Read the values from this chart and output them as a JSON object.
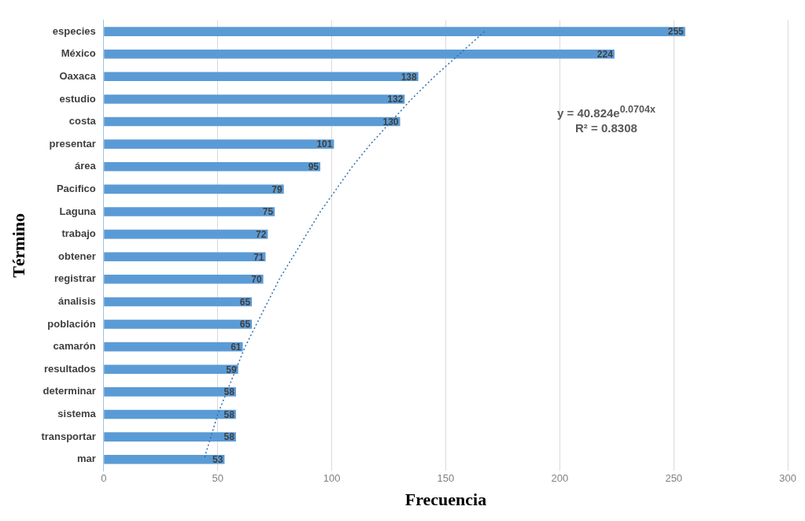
{
  "chart_data": {
    "type": "bar",
    "orientation": "horizontal",
    "xlabel": "Frecuencia",
    "ylabel": "Término",
    "categories": [
      "especies",
      "México",
      "Oaxaca",
      "estudio",
      "costa",
      "presentar",
      "área",
      "Pacifico",
      "Laguna",
      "trabajo",
      "obtener",
      "registrar",
      "ánalisis",
      "población",
      "camarón",
      "resultados",
      "determinar",
      "sistema",
      "transportar",
      "mar"
    ],
    "series": [
      {
        "color": "#5b9bd5",
        "values": [
          255,
          224,
          138,
          132,
          130,
          101,
          95,
          79,
          75,
          72,
          71,
          70,
          65,
          65,
          61,
          59,
          58,
          58,
          58,
          53
        ],
        "value_labels": [
          "255",
          "224",
          "138",
          "132",
          "130",
          "101",
          "95",
          "79",
          "75",
          "72",
          "71",
          "70",
          "65",
          "65",
          "61",
          "59",
          "58",
          "58",
          "58",
          "53"
        ]
      },
      {
        "type": "line",
        "color": "#2f6fb0",
        "line_style": "dotted",
        "values": [
          167,
          156,
          145,
          135,
          126,
          117,
          109,
          102,
          95,
          89,
          83,
          77,
          72,
          67,
          62,
          58,
          54,
          50,
          47,
          44
        ]
      }
    ],
    "xlim": [
      0,
      300
    ],
    "xticks": [
      0,
      50,
      100,
      150,
      200,
      250,
      300
    ],
    "grid": "x",
    "legend": false,
    "annotations": [
      "y = 40.824e$^{0.0704x}$",
      "R² = 0.8308"
    ]
  }
}
